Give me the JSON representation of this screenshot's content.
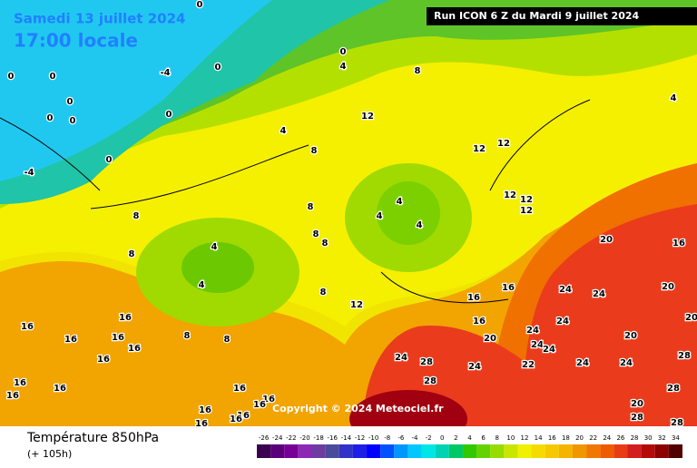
{
  "header": {
    "date": "Samedi 13 juillet 2024",
    "time": "17:00 locale",
    "run": "Run ICON 6 Z du Mardi 9 juillet 2024"
  },
  "copyright": "Copyright © 2024 Meteociel.fr",
  "footer": {
    "title": "Température 850hPa",
    "lead": "(+ 105h)"
  },
  "contour_labels": [
    0,
    0,
    4,
    0,
    0,
    0,
    -4,
    8,
    0,
    0,
    0,
    0,
    12,
    4,
    4,
    8,
    -4,
    0,
    4,
    12,
    12,
    12,
    12,
    12,
    8,
    8,
    4,
    4,
    8,
    8,
    4,
    8,
    20,
    16,
    4,
    8,
    12,
    16,
    16,
    24,
    24,
    20,
    16,
    16,
    16,
    16,
    24,
    24,
    20,
    20,
    8,
    8,
    20,
    16,
    16,
    16,
    24,
    28,
    24,
    22,
    24,
    24,
    24,
    24,
    28,
    16,
    16,
    16,
    16,
    28,
    16,
    16,
    20,
    16,
    16,
    16,
    16,
    28,
    28,
    28
  ],
  "scale": {
    "values": [
      -26,
      -24,
      -22,
      -20,
      -18,
      -16,
      -14,
      -12,
      -10,
      -8,
      -6,
      -4,
      -2,
      0,
      2,
      4,
      6,
      8,
      10,
      12,
      14,
      16,
      18,
      20,
      22,
      24,
      26,
      28,
      30,
      32,
      34
    ],
    "colors": [
      "#3c0050",
      "#5a0078",
      "#780096",
      "#8c28b4",
      "#6e3ca0",
      "#4b4b9b",
      "#3232c8",
      "#1e1ee6",
      "#0000ff",
      "#0050ff",
      "#0096ff",
      "#00c8ff",
      "#00e6e6",
      "#00d2b4",
      "#00c864",
      "#32c800",
      "#64d200",
      "#96dc00",
      "#c8e600",
      "#f0f000",
      "#f5dc00",
      "#f5c800",
      "#f5b400",
      "#f09600",
      "#f07800",
      "#f05a00",
      "#e83c14",
      "#d21e1e",
      "#b40a0a",
      "#8c0000",
      "#500000"
    ]
  }
}
